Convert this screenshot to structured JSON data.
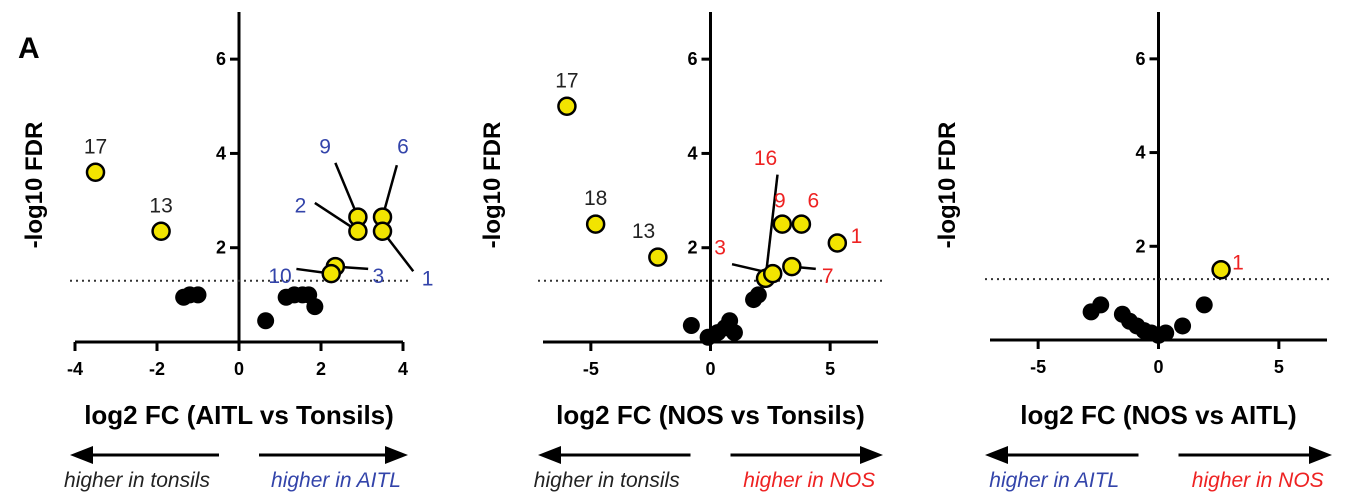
{
  "panel_letter": "A",
  "colors": {
    "highlight_fill": "#f2e400",
    "background_point": "#000000",
    "label_black": "#222222",
    "label_blue": "#3344aa",
    "label_red": "#ee2222"
  },
  "chart_data": [
    {
      "type": "scatter",
      "title": "",
      "xlabel": "log2 FC (AITL vs Tonsils)",
      "ylabel": "-log10 FDR",
      "xlim": [
        -4,
        4
      ],
      "ylim": [
        0,
        7
      ],
      "xticks": [
        -4,
        -2,
        0,
        2,
        4
      ],
      "yticks": [
        2,
        4,
        6
      ],
      "threshold_y": 1.3,
      "grid": false,
      "arrow_left_label": "higher in tonsils",
      "arrow_right_label": "higher in AITL",
      "arrow_left_color": "black",
      "arrow_right_color": "blue",
      "points": [
        {
          "x": -3.5,
          "y": 3.6,
          "sig": true,
          "label": "17",
          "label_color": "black",
          "lx": -3.5,
          "ly": 4.15
        },
        {
          "x": -1.9,
          "y": 2.35,
          "sig": true,
          "label": "13",
          "label_color": "black",
          "lx": -1.9,
          "ly": 2.9
        },
        {
          "x": 2.9,
          "y": 2.65,
          "sig": true,
          "label": "9",
          "label_color": "blue",
          "lx": 2.1,
          "ly": 4.15,
          "line": [
            2.35,
            3.8
          ]
        },
        {
          "x": 3.5,
          "y": 2.65,
          "sig": true,
          "label": "6",
          "label_color": "blue",
          "lx": 4.0,
          "ly": 4.15,
          "line": [
            3.85,
            3.75
          ]
        },
        {
          "x": 2.9,
          "y": 2.35,
          "sig": true,
          "label": "2",
          "label_color": "blue",
          "lx": 1.5,
          "ly": 2.9,
          "line": [
            1.85,
            2.95
          ]
        },
        {
          "x": 3.5,
          "y": 2.35,
          "sig": true,
          "label": "1",
          "label_color": "blue",
          "lx": 4.6,
          "ly": 1.35,
          "line": [
            4.25,
            1.5
          ]
        },
        {
          "x": 2.35,
          "y": 1.6,
          "sig": true,
          "label": "3",
          "label_color": "blue",
          "lx": 3.4,
          "ly": 1.4,
          "line": [
            3.15,
            1.55
          ]
        },
        {
          "x": 2.25,
          "y": 1.45,
          "sig": true,
          "label": "10",
          "label_color": "blue",
          "lx": 1.0,
          "ly": 1.4,
          "line": [
            1.4,
            1.55
          ]
        },
        {
          "x": -1.35,
          "y": 0.95,
          "sig": false
        },
        {
          "x": -1.2,
          "y": 1.0,
          "sig": false
        },
        {
          "x": -1.0,
          "y": 1.0,
          "sig": false
        },
        {
          "x": 0.65,
          "y": 0.45,
          "sig": false
        },
        {
          "x": 1.15,
          "y": 0.95,
          "sig": false
        },
        {
          "x": 1.35,
          "y": 1.0,
          "sig": false
        },
        {
          "x": 1.55,
          "y": 1.0,
          "sig": false
        },
        {
          "x": 1.7,
          "y": 1.0,
          "sig": false
        },
        {
          "x": 1.85,
          "y": 0.75,
          "sig": false
        }
      ]
    },
    {
      "type": "scatter",
      "title": "",
      "xlabel": "log2 FC (NOS vs Tonsils)",
      "ylabel": "-log10 FDR",
      "xlim": [
        -7,
        7
      ],
      "ylim": [
        0,
        7
      ],
      "xticks": [
        -5,
        0,
        5
      ],
      "yticks": [
        2,
        4,
        6
      ],
      "threshold_y": 1.3,
      "grid": false,
      "arrow_left_label": "higher in tonsils",
      "arrow_right_label": "higher in NOS",
      "arrow_left_color": "black",
      "arrow_right_color": "red",
      "points": [
        {
          "x": -6.0,
          "y": 5.0,
          "sig": true,
          "label": "17",
          "label_color": "black",
          "lx": -6.0,
          "ly": 5.55
        },
        {
          "x": -4.8,
          "y": 2.5,
          "sig": true,
          "label": "18",
          "label_color": "black",
          "lx": -4.8,
          "ly": 3.05
        },
        {
          "x": -2.2,
          "y": 1.8,
          "sig": true,
          "label": "13",
          "label_color": "black",
          "lx": -2.8,
          "ly": 2.35
        },
        {
          "x": 2.3,
          "y": 1.35,
          "sig": true,
          "label": "16",
          "label_color": "red",
          "lx": 2.3,
          "ly": 3.9,
          "line": [
            2.8,
            3.55
          ]
        },
        {
          "x": 3.0,
          "y": 2.5,
          "sig": true,
          "label": "9",
          "label_color": "red",
          "lx": 2.9,
          "ly": 3.0
        },
        {
          "x": 3.8,
          "y": 2.5,
          "sig": true,
          "label": "6",
          "label_color": "red",
          "lx": 4.3,
          "ly": 3.0
        },
        {
          "x": 5.3,
          "y": 2.1,
          "sig": true,
          "label": "1",
          "label_color": "red",
          "lx": 6.1,
          "ly": 2.25
        },
        {
          "x": 2.6,
          "y": 1.45,
          "sig": true,
          "label": "3",
          "label_color": "red",
          "lx": 0.4,
          "ly": 2.0,
          "line": [
            0.9,
            1.65
          ]
        },
        {
          "x": 3.4,
          "y": 1.6,
          "sig": true,
          "label": "7",
          "label_color": "red",
          "lx": 4.9,
          "ly": 1.4,
          "line": [
            4.4,
            1.55
          ]
        },
        {
          "x": -0.8,
          "y": 0.35,
          "sig": false
        },
        {
          "x": -0.1,
          "y": 0.1,
          "sig": false
        },
        {
          "x": 0.3,
          "y": 0.2,
          "sig": false
        },
        {
          "x": 0.6,
          "y": 0.3,
          "sig": false
        },
        {
          "x": 0.8,
          "y": 0.45,
          "sig": false
        },
        {
          "x": 1.0,
          "y": 0.2,
          "sig": false
        },
        {
          "x": 1.8,
          "y": 0.9,
          "sig": false
        },
        {
          "x": 2.0,
          "y": 1.0,
          "sig": false
        }
      ]
    },
    {
      "type": "scatter",
      "title": "",
      "xlabel": "log2 FC (NOS vs AITL)",
      "ylabel": "-log10 FDR",
      "xlim": [
        -7,
        7
      ],
      "ylim": [
        0,
        7
      ],
      "xticks": [
        -5,
        0,
        5
      ],
      "yticks": [
        2,
        4,
        6
      ],
      "threshold_y": 1.3,
      "grid": false,
      "arrow_left_label": "higher in AITL",
      "arrow_right_label": "higher in NOS",
      "arrow_left_color": "blue",
      "arrow_right_color": "red",
      "points": [
        {
          "x": 2.6,
          "y": 1.5,
          "sig": true,
          "label": "1",
          "label_color": "red",
          "lx": 3.3,
          "ly": 1.65
        },
        {
          "x": -2.8,
          "y": 0.6,
          "sig": false
        },
        {
          "x": -2.4,
          "y": 0.75,
          "sig": false
        },
        {
          "x": -1.5,
          "y": 0.55,
          "sig": false
        },
        {
          "x": -1.2,
          "y": 0.4,
          "sig": false
        },
        {
          "x": -0.9,
          "y": 0.3,
          "sig": false
        },
        {
          "x": -0.6,
          "y": 0.2,
          "sig": false
        },
        {
          "x": -0.3,
          "y": 0.15,
          "sig": false
        },
        {
          "x": 0.0,
          "y": 0.1,
          "sig": false
        },
        {
          "x": 0.3,
          "y": 0.15,
          "sig": false
        },
        {
          "x": 1.0,
          "y": 0.3,
          "sig": false
        },
        {
          "x": 1.9,
          "y": 0.75,
          "sig": false
        }
      ]
    }
  ]
}
